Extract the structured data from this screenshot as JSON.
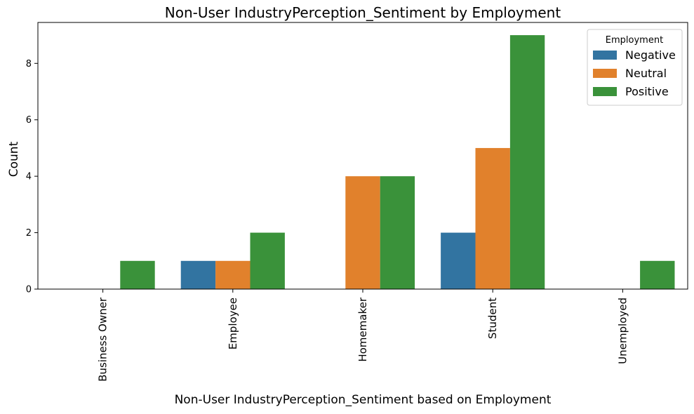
{
  "chart_data": {
    "type": "bar",
    "title": "Non-User IndustryPerception_Sentiment by Employment",
    "xlabel": "Non-User IndustryPerception_Sentiment based on Employment",
    "ylabel": "Count",
    "categories": [
      "Business Owner",
      "Employee",
      "Homemaker",
      "Student",
      "Unemployed"
    ],
    "series": [
      {
        "name": "Negative",
        "color": "#3274a1",
        "values": [
          0,
          1,
          0,
          2,
          0
        ]
      },
      {
        "name": "Neutral",
        "color": "#e1812c",
        "values": [
          0,
          1,
          4,
          5,
          0
        ]
      },
      {
        "name": "Positive",
        "color": "#3a923a",
        "values": [
          1,
          2,
          4,
          9,
          1
        ]
      }
    ],
    "yticks": [
      0,
      2,
      4,
      6,
      8
    ],
    "ylim": [
      0,
      9.45
    ],
    "grid": false,
    "legend": {
      "title": "Employment",
      "position": "top-right"
    }
  }
}
